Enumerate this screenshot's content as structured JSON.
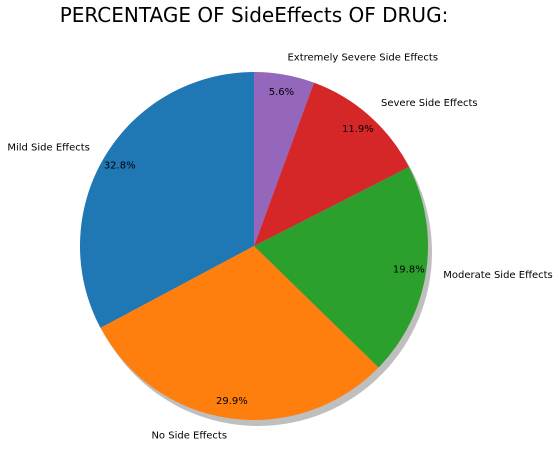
{
  "chart_data": {
    "type": "pie",
    "title": "PERCENTAGE OF SideEffects OF DRUG:",
    "categories": [
      "Mild Side Effects",
      "No Side Effects",
      "Moderate Side Effects",
      "Severe Side Effects",
      "Extremely Severe Side Effects"
    ],
    "values": [
      32.8,
      29.9,
      19.8,
      11.9,
      5.6
    ],
    "value_labels": [
      "32.8%",
      "29.9%",
      "19.8%",
      "11.9%",
      "5.6%"
    ],
    "colors": [
      "#1f77b4",
      "#ff7f0e",
      "#2ca02c",
      "#d62728",
      "#9467bd"
    ],
    "start_angle_deg": 90,
    "direction": "counterclockwise",
    "shadow": true
  }
}
